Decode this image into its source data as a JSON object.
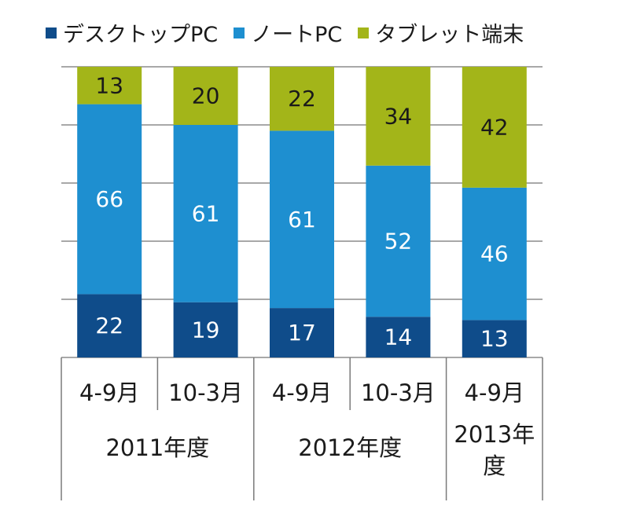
{
  "chart_data": {
    "type": "bar",
    "stacked": true,
    "percent": true,
    "categories": [
      "4-9月",
      "10-3月",
      "4-9月",
      "10-3月",
      "4-9月"
    ],
    "groups": [
      {
        "label": "2011年度",
        "lines": [
          "2011年度"
        ],
        "span": [
          0,
          1
        ]
      },
      {
        "label": "2012年度",
        "lines": [
          "2012年度"
        ],
        "span": [
          2,
          3
        ]
      },
      {
        "label": "2013年度",
        "lines": [
          "2013年",
          "度"
        ],
        "span": [
          4,
          4
        ]
      }
    ],
    "series": [
      {
        "name": "デスクトップPC",
        "color": "#0f4c8a",
        "label_color": "#ffffff",
        "values": [
          22,
          19,
          17,
          14,
          13
        ]
      },
      {
        "name": "ノートPC",
        "color": "#1e8fd0",
        "label_color": "#ffffff",
        "values": [
          66,
          61,
          61,
          52,
          46
        ]
      },
      {
        "name": "タブレット端末",
        "color": "#a3b519",
        "label_color": "#1a1a1a",
        "values": [
          13,
          20,
          22,
          34,
          42
        ]
      }
    ],
    "ylim": [
      0,
      100
    ],
    "grid": true,
    "legend_position": "top"
  }
}
